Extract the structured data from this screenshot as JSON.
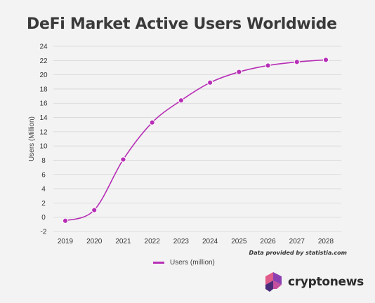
{
  "title": "DeFi Market Active Users Worldwide",
  "credit": "Data provided by statistia.com",
  "brand": {
    "name": "cryptonews",
    "logo_icon": "cryptonews-logo-icon",
    "logo_colors": [
      "#e05a8a",
      "#8b3fb0",
      "#4a2b7a",
      "#c44f9e"
    ]
  },
  "colors": {
    "series": "#b62fb6",
    "grid": "#d6d6d6",
    "background": "#f4f3f3"
  },
  "chart_data": {
    "type": "line",
    "title": "DeFi Market Active Users Worldwide",
    "ylabel": "Users (Million)",
    "xlabel": "",
    "ylim": [
      -2,
      24
    ],
    "yticks": [
      -2,
      0,
      2,
      4,
      6,
      8,
      10,
      12,
      14,
      16,
      18,
      20,
      22,
      24
    ],
    "grid": true,
    "legend": "bottom-center",
    "categories": [
      "2019",
      "2020",
      "2021",
      "2022",
      "2023",
      "2024",
      "2025",
      "2026",
      "2027",
      "2028"
    ],
    "series": [
      {
        "name": "Users (million)",
        "values": [
          -0.5,
          1.0,
          8.1,
          13.3,
          16.4,
          18.9,
          20.4,
          21.3,
          21.8,
          22.1
        ]
      }
    ]
  }
}
